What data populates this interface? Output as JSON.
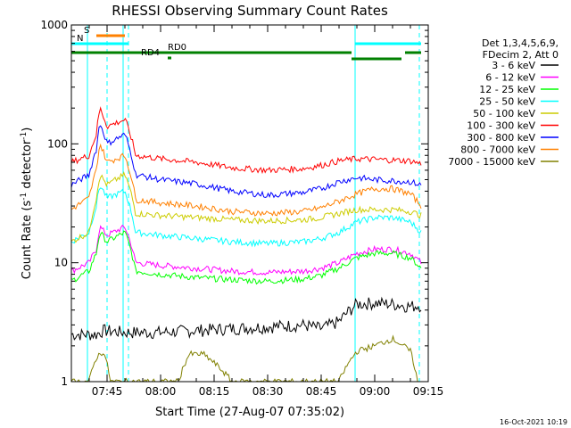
{
  "chart_data": {
    "type": "line",
    "title": "RHESSI Observing Summary Count Rates",
    "xlabel": "Start Time (27-Aug-07 07:35:02)",
    "ylabel": "Count Rate (s",
    "ylabel_sup": "-1",
    "ylabel_tail": " detector",
    "ylabel_tail_sup": "-1",
    "ylabel_end": ")",
    "yscale": "log",
    "ylim": [
      1,
      1000
    ],
    "xlim": [
      "07:35",
      "09:15"
    ],
    "x_ticks": [
      "07:45",
      "08:00",
      "08:15",
      "08:30",
      "08:45",
      "09:00",
      "09:15"
    ],
    "y_ticks": [
      "1",
      "10",
      "100",
      "1000"
    ],
    "grid": false,
    "legend_header": [
      "Det 1,3,4,5,6,9,",
      "FDecim 2, Att 0"
    ],
    "legend_placement": "right",
    "timestamp": "16-Oct-2021 10:19",
    "night_intervals": [
      [
        "07:39.5",
        "07:45"
      ],
      [
        "07:49.5",
        "07:51"
      ],
      [
        "08:54.5",
        "09:12.5"
      ]
    ],
    "attenuator_bars": [
      {
        "label": "S",
        "start": "07:42",
        "end": "07:50",
        "color": "#ff8000"
      },
      {
        "label": "N",
        "start": "07:35",
        "end": "07:51",
        "color": "#00ffff"
      },
      {
        "label": "",
        "start": "08:54.5",
        "end": "09:13",
        "color": "#00ffff"
      },
      {
        "label": "RD0",
        "start": "07:35",
        "end": "08:53.5",
        "color": "#008000"
      },
      {
        "label": "",
        "start": "08:53.5",
        "end": "09:07.5",
        "color": "#008000"
      },
      {
        "label": "",
        "start": "09:08.5",
        "end": "09:13",
        "color": "#008000"
      },
      {
        "label": "RD4",
        "start": "08:02",
        "end": "08:03",
        "color": "#008000"
      }
    ],
    "series": [
      {
        "name": "3 - 6 keV",
        "color": "#000000",
        "x": [
          "07:35",
          "07:40",
          "07:42",
          "07:44",
          "07:50",
          "07:55",
          "08:00",
          "08:10",
          "08:20",
          "08:30",
          "08:40",
          "08:45",
          "08:50",
          "08:55",
          "09:00",
          "09:05",
          "09:10",
          "09:13"
        ],
        "values": [
          2.5,
          2.5,
          2.5,
          2.7,
          2.6,
          2.6,
          2.6,
          2.7,
          2.8,
          2.9,
          3.0,
          2.8,
          3.2,
          4.5,
          4.6,
          4.5,
          4.3,
          4.4
        ]
      },
      {
        "name": "6 - 12 keV",
        "color": "#ff00ff",
        "x": [
          "07:35",
          "07:40",
          "07:42",
          "07:43",
          "07:45",
          "07:50",
          "07:53",
          "08:00",
          "08:10",
          "08:20",
          "08:30",
          "08:40",
          "08:45",
          "08:50",
          "08:55",
          "09:00",
          "09:05",
          "09:10",
          "09:13"
        ],
        "values": [
          8.5,
          10,
          13,
          20,
          17,
          20,
          10,
          9.5,
          9.0,
          8.5,
          8.3,
          8.5,
          9.0,
          10,
          12,
          13,
          13,
          12,
          10
        ]
      },
      {
        "name": "12 - 25 keV",
        "color": "#00ff00",
        "x": [
          "07:35",
          "07:40",
          "07:42",
          "07:43",
          "07:45",
          "07:50",
          "07:53",
          "08:00",
          "08:10",
          "08:20",
          "08:30",
          "08:40",
          "08:45",
          "08:50",
          "08:55",
          "09:00",
          "09:05",
          "09:10",
          "09:13"
        ],
        "values": [
          7,
          8.5,
          12,
          18,
          15,
          18,
          8.5,
          8.0,
          7.5,
          7.2,
          7.0,
          7.3,
          7.8,
          9.0,
          11,
          12,
          12,
          11,
          9
        ]
      },
      {
        "name": "25 - 50 keV",
        "color": "#00ffff",
        "x": [
          "07:35",
          "07:40",
          "07:42",
          "07:43",
          "07:45",
          "07:50",
          "07:53",
          "08:00",
          "08:10",
          "08:20",
          "08:30",
          "08:40",
          "08:45",
          "08:50",
          "08:55",
          "09:00",
          "09:05",
          "09:10",
          "09:13"
        ],
        "values": [
          15,
          18,
          30,
          45,
          35,
          40,
          18,
          17,
          16,
          15,
          14.5,
          15,
          16,
          18,
          22,
          24,
          24,
          22,
          18
        ]
      },
      {
        "name": "50 - 100 keV",
        "color": "#cccc00",
        "x": [
          "07:35",
          "07:40",
          "07:42",
          "07:43",
          "07:45",
          "07:50",
          "07:53",
          "08:00",
          "08:10",
          "08:20",
          "08:30",
          "08:40",
          "08:45",
          "08:50",
          "08:55",
          "09:00",
          "09:05",
          "09:10",
          "09:13"
        ],
        "values": [
          15,
          18,
          35,
          55,
          45,
          55,
          26,
          25,
          24,
          23,
          22.5,
          23,
          24,
          26,
          28,
          28,
          28,
          27,
          25
        ]
      },
      {
        "name": "100 - 300 keV",
        "color": "#ff0000",
        "x": [
          "07:35",
          "07:40",
          "07:42",
          "07:43",
          "07:45",
          "07:50",
          "07:53",
          "08:00",
          "08:10",
          "08:20",
          "08:30",
          "08:40",
          "08:45",
          "08:50",
          "08:55",
          "09:00",
          "09:05",
          "09:10",
          "09:13"
        ],
        "values": [
          70,
          80,
          120,
          200,
          140,
          160,
          80,
          75,
          70,
          63,
          60,
          62,
          66,
          72,
          75,
          74,
          73,
          72,
          68
        ]
      },
      {
        "name": "300 - 800 keV",
        "color": "#0000ff",
        "x": [
          "07:35",
          "07:40",
          "07:42",
          "07:43",
          "07:45",
          "07:50",
          "07:53",
          "08:00",
          "08:10",
          "08:20",
          "08:30",
          "08:40",
          "08:45",
          "08:50",
          "08:55",
          "09:00",
          "09:05",
          "09:10",
          "09:13"
        ],
        "values": [
          45,
          55,
          90,
          150,
          100,
          120,
          55,
          50,
          46,
          40,
          37,
          39,
          42,
          48,
          52,
          50,
          49,
          48,
          45
        ]
      },
      {
        "name": "800 - 7000 keV",
        "color": "#ff8000",
        "x": [
          "07:35",
          "07:40",
          "07:42",
          "07:43",
          "07:45",
          "07:50",
          "07:53",
          "08:00",
          "08:10",
          "08:20",
          "08:30",
          "08:40",
          "08:45",
          "08:50",
          "08:55",
          "09:00",
          "09:05",
          "09:10",
          "09:13"
        ],
        "values": [
          28,
          35,
          60,
          100,
          70,
          80,
          34,
          32,
          30,
          27,
          26,
          27,
          29,
          33,
          38,
          42,
          42,
          38,
          30
        ]
      },
      {
        "name": "7000 - 15000 keV",
        "color": "#808000",
        "x": [
          "07:35",
          "07:38",
          "07:40",
          "07:42",
          "07:44",
          "07:46",
          "07:50",
          "07:52",
          "07:55",
          "08:00",
          "08:05",
          "08:08",
          "08:12",
          "08:20",
          "08:30",
          "08:40",
          "08:50",
          "08:55",
          "09:00",
          "09:05",
          "09:10",
          "09:12"
        ],
        "values": [
          1.0,
          1.0,
          1.0,
          1.6,
          1.8,
          1.0,
          1.0,
          1.0,
          1.0,
          1.0,
          1.0,
          1.7,
          1.7,
          1.0,
          1.0,
          1.0,
          1.0,
          1.8,
          2.0,
          2.3,
          1.8,
          1.0
        ]
      }
    ]
  }
}
